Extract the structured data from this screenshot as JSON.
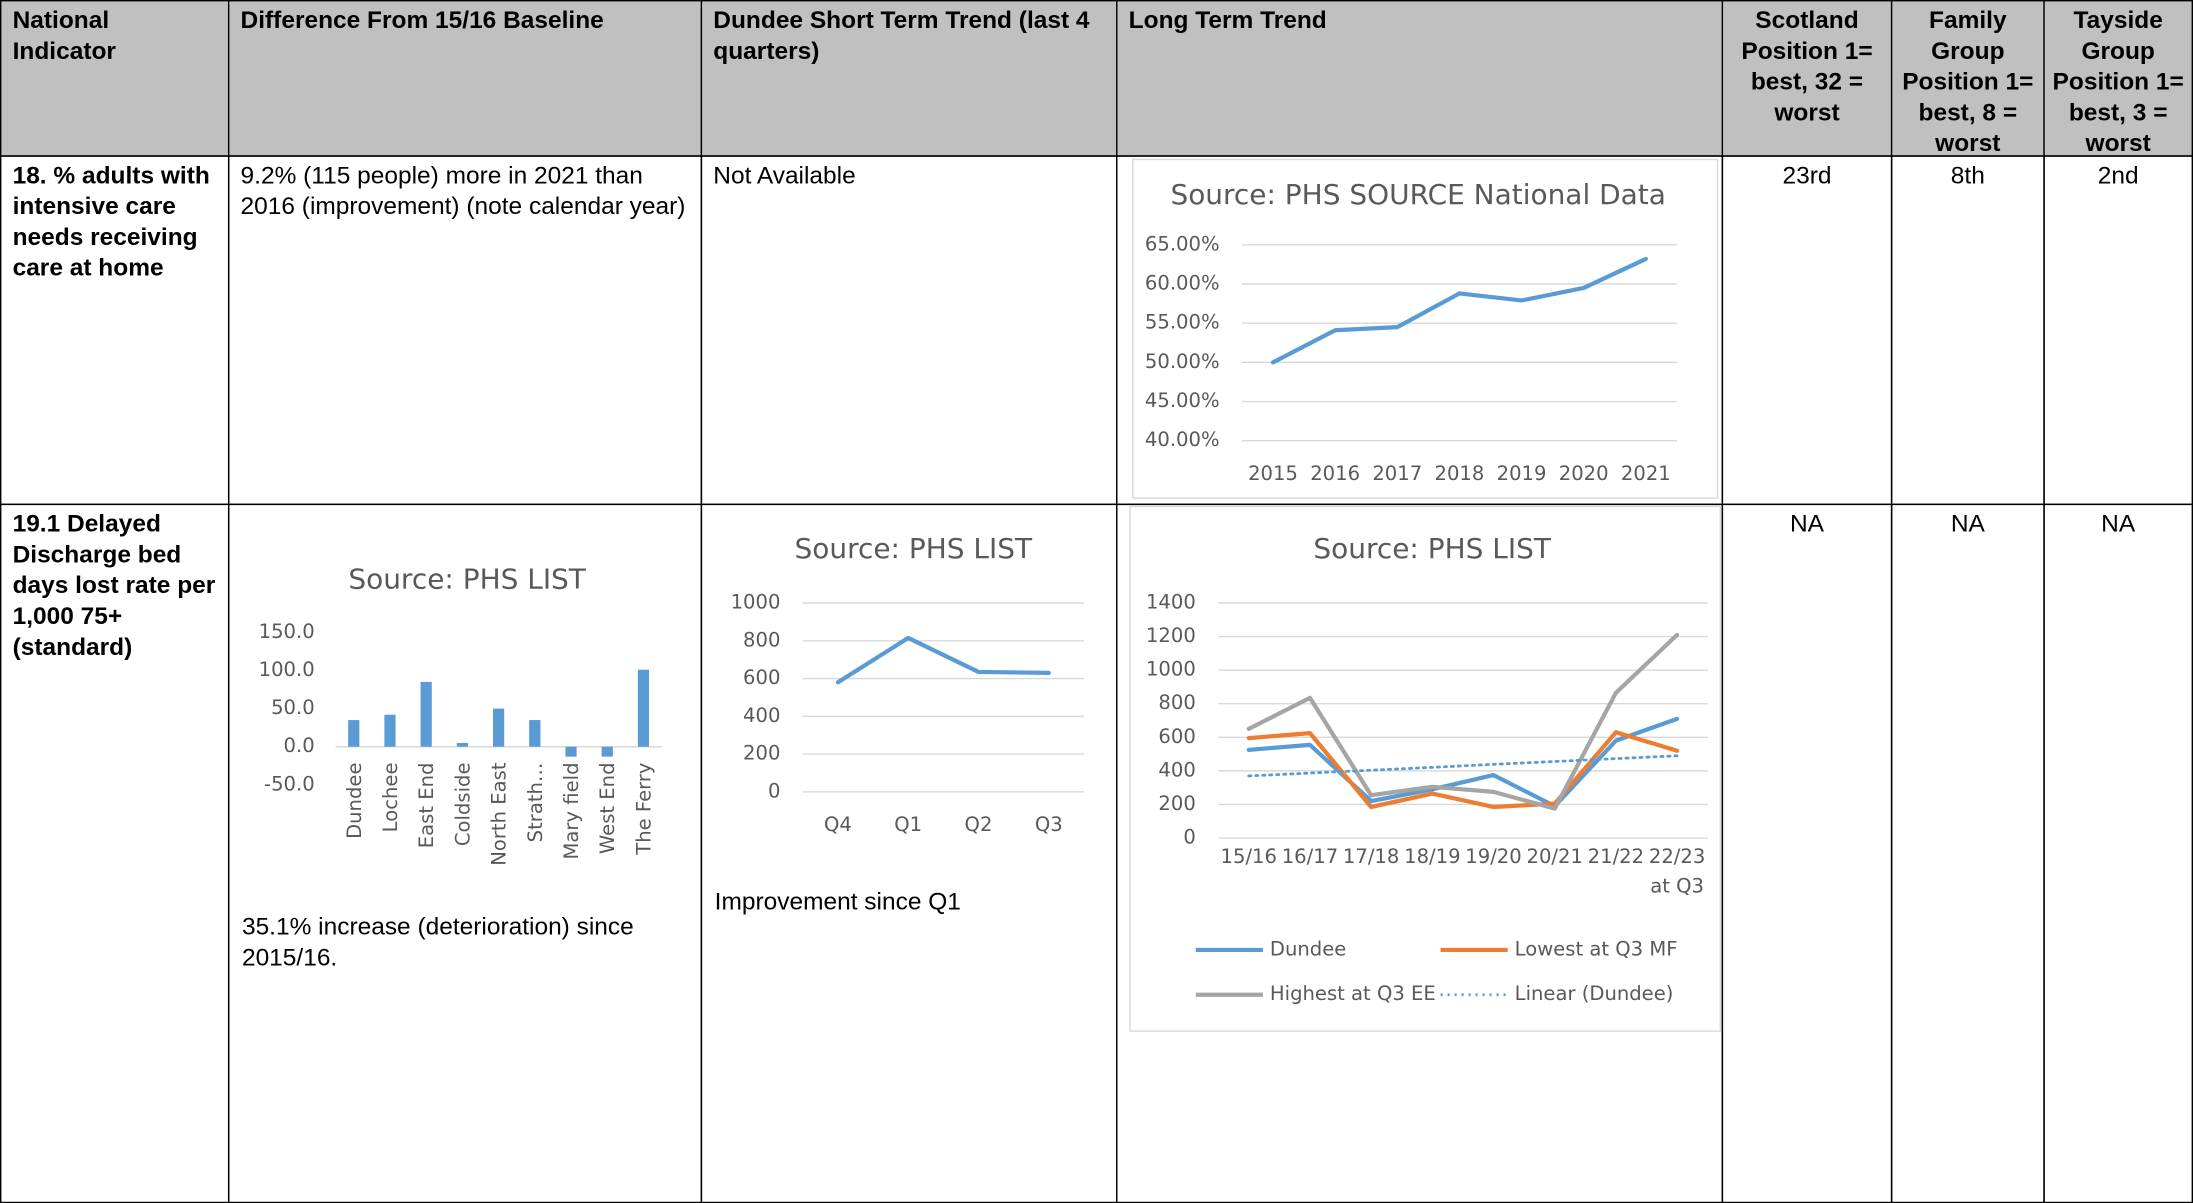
{
  "table": {
    "headers": [
      "National Indicator",
      "Difference From 15/16 Baseline",
      "Dundee Short Term Trend (last 4 quarters)",
      "Long Term Trend",
      "Scotland Position 1= best, 32 = worst",
      "Family Group Position 1= best, 8 = worst",
      "Tayside Group Position 1= best, 3 = worst"
    ],
    "rows": [
      {
        "indicator": "18. % adults with intensive care needs receiving care at home",
        "baseline": "9.2% (115 people) more in 2021 than 2016 (improvement) (note calendar year)",
        "short_term": "Not Available",
        "scotland": "23rd",
        "family": "8th",
        "tayside": "2nd"
      },
      {
        "indicator": "19.1 Delayed Discharge bed days lost rate per 1,000 75+ (standard)",
        "baseline": "35.1% increase (deterioration) since 2015/16.",
        "short_term": "Improvement since Q1",
        "scotland": "NA",
        "family": "NA",
        "tayside": "NA"
      }
    ]
  },
  "chart_data": [
    {
      "type": "line",
      "title": "Source: PHS SOURCE National Data",
      "categories": [
        "2015",
        "2016",
        "2017",
        "2018",
        "2019",
        "2020",
        "2021"
      ],
      "values": [
        50.0,
        54.1,
        54.5,
        58.8,
        57.9,
        59.5,
        63.2
      ],
      "color": "#5b9bd5",
      "ylim": [
        40,
        65
      ],
      "yticks": [
        {
          "value": 40,
          "label": "40.00%"
        },
        {
          "value": 45,
          "label": "45.00%"
        },
        {
          "value": 50,
          "label": "50.00%"
        },
        {
          "value": 55,
          "label": "55.00%"
        },
        {
          "value": 60,
          "label": "60.00%"
        },
        {
          "value": 65,
          "label": "65.00%"
        }
      ],
      "grid": true
    },
    {
      "type": "bar",
      "title": "Source: PHS LIST",
      "categories": [
        "Dundee",
        "Lochee",
        "East End",
        "Coldside",
        "North East",
        "Strath…",
        "Mary field",
        "West End",
        "The Ferry"
      ],
      "values": [
        35,
        42,
        85,
        5,
        50,
        35,
        -13,
        -13,
        101
      ],
      "color": "#5b9bd5",
      "ylim": [
        -50,
        150
      ],
      "yticks": [
        {
          "value": -50,
          "label": "-50.0"
        },
        {
          "value": 0,
          "label": "0.0"
        },
        {
          "value": 50,
          "label": "50.0"
        },
        {
          "value": 100,
          "label": "100.0"
        },
        {
          "value": 150,
          "label": "150.0"
        }
      ],
      "grid": false
    },
    {
      "type": "line",
      "title": "Source: PHS LIST",
      "categories": [
        "Q4",
        "Q1",
        "Q2",
        "Q3"
      ],
      "values": [
        580,
        815,
        635,
        630
      ],
      "color": "#5b9bd5",
      "ylim": [
        0,
        1000
      ],
      "yticks": [
        0,
        200,
        400,
        600,
        800,
        1000
      ],
      "grid": true
    },
    {
      "type": "line",
      "title": "Source: PHS LIST",
      "categories": [
        "15/16",
        "16/17",
        "17/18",
        "18/19",
        "19/20",
        "20/21",
        "21/22",
        "22/23 at Q3"
      ],
      "series": [
        {
          "name": "Dundee",
          "color": "#5b9bd5",
          "values": [
            525,
            555,
            220,
            290,
            375,
            190,
            580,
            710
          ]
        },
        {
          "name": "Lowest at Q3 MF",
          "color": "#ed7d31",
          "values": [
            595,
            625,
            185,
            265,
            185,
            205,
            630,
            520
          ]
        },
        {
          "name": "Highest at Q3 EE",
          "color": "#a5a5a5",
          "values": [
            650,
            835,
            255,
            305,
            275,
            175,
            865,
            1210
          ]
        },
        {
          "name": "Linear (Dundee)",
          "color": "#5b9bd5",
          "style": "dotted",
          "values": [
            370,
            387,
            404,
            421,
            439,
            456,
            473,
            490
          ]
        }
      ],
      "ylim": [
        0,
        1400
      ],
      "yticks": [
        0,
        200,
        400,
        600,
        800,
        1000,
        1200,
        1400
      ],
      "grid": true,
      "legend": "bottom"
    }
  ]
}
